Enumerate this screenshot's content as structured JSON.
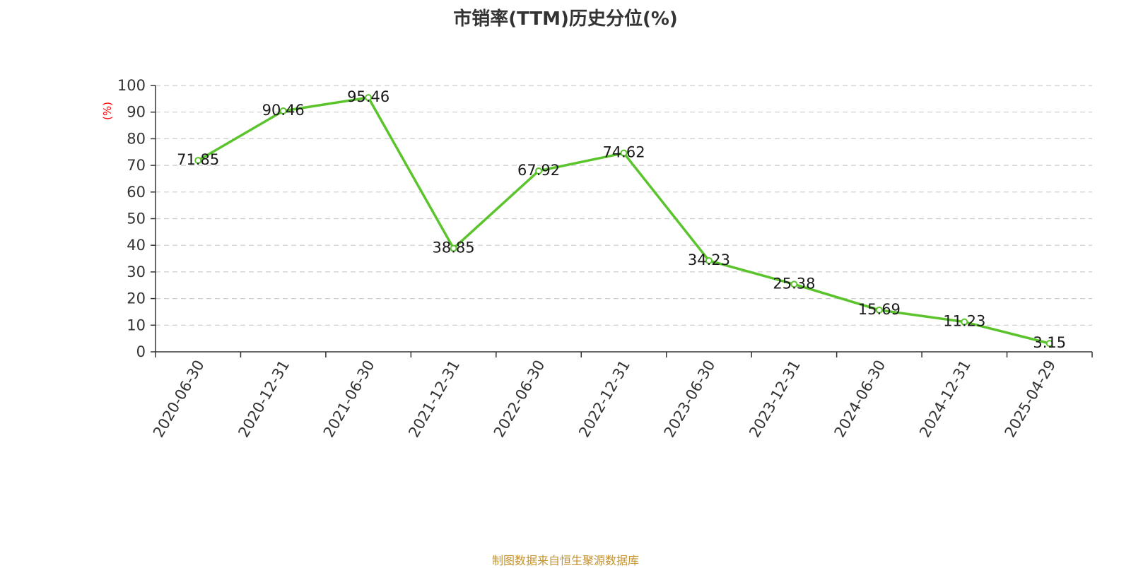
{
  "chart_data": {
    "type": "line",
    "title": "市销率(TTM)历史分位(%)",
    "ylabel": "(%)",
    "xlabel": "",
    "ylim": [
      0,
      100
    ],
    "yticks": [
      0,
      10,
      20,
      30,
      40,
      50,
      60,
      70,
      80,
      90,
      100
    ],
    "categories": [
      "2020-06-30",
      "2020-12-31",
      "2021-06-30",
      "2021-12-31",
      "2022-06-30",
      "2022-12-31",
      "2023-06-30",
      "2023-12-31",
      "2024-06-30",
      "2024-12-31",
      "2025-04-29"
    ],
    "series": [
      {
        "values": [
          71.85,
          90.46,
          95.46,
          38.85,
          67.92,
          74.62,
          34.23,
          25.38,
          15.69,
          11.23,
          3.15
        ],
        "labels": [
          "71.85",
          "90.46",
          "95.46",
          "38.85",
          "67.92",
          "74.62",
          "34.23",
          "25.38",
          "15.69",
          "11.23",
          "3.15"
        ],
        "color": "#5bc42c"
      }
    ],
    "grid": true,
    "grid_style": "dashed",
    "ylabel_color": "#ff0000"
  },
  "footer": {
    "source": "制图数据来自恒生聚源数据库"
  }
}
